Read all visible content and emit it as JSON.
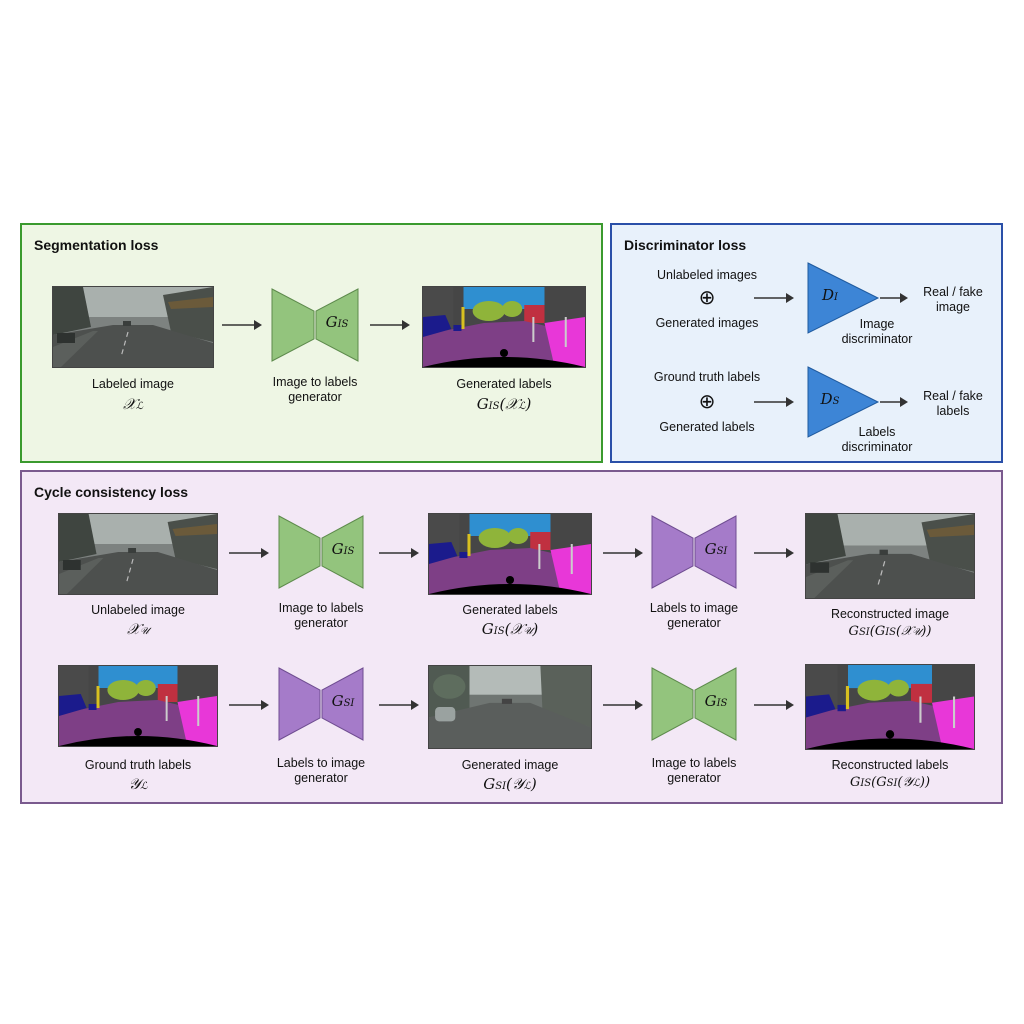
{
  "segmentation": {
    "title": "Segmentation loss",
    "labeled_image": "Labeled image",
    "labeled_math": "𝒳",
    "labeled_sub": "ℒ",
    "gen_line1": "Image to labels",
    "gen_line2": "generator",
    "gen_symbol": "G",
    "gen_sub": "IS",
    "out_label": "Generated labels",
    "out_math": "G",
    "out_math_sub": "IS",
    "out_math_arg": "(𝒳",
    "out_math_arg_sub": "ℒ",
    "out_math_close": ")"
  },
  "discriminator": {
    "title": "Discriminator loss",
    "row1_top": "Unlabeled images",
    "row1_bottom": "Generated images",
    "row1_symbol": "D",
    "row1_sub": "I",
    "row1_name_1": "Image",
    "row1_name_2": "discriminator",
    "row1_out_1": "Real / fake",
    "row1_out_2": "image",
    "row2_top": "Ground truth labels",
    "row2_bottom": "Generated labels",
    "row2_symbol": "D",
    "row2_sub": "S",
    "row2_name_1": "Labels",
    "row2_name_2": "discriminator",
    "row2_out_1": "Real / fake",
    "row2_out_2": "labels",
    "oplus": "⊕"
  },
  "cycle": {
    "title": "Cycle consistency loss",
    "row1": {
      "in_label": "Unlabeled image",
      "in_math": "𝒳",
      "in_sub": "𝒰",
      "g1_line1": "Image to labels",
      "g1_line2": "generator",
      "g1_symbol": "G",
      "g1_sub": "IS",
      "mid_label": "Generated labels",
      "mid_math": "G",
      "mid_sub": "IS",
      "mid_arg": "(𝒳",
      "mid_arg_sub": "𝒰",
      "mid_close": ")",
      "g2_line1": "Labels to image",
      "g2_line2": "generator",
      "g2_symbol": "G",
      "g2_sub": "SI",
      "out_label": "Reconstructed image",
      "out_math": "G",
      "out_sub": "SI",
      "out_arg": "(G",
      "out_arg_sub": "IS",
      "out_arg2": "(𝒳",
      "out_arg2_sub": "𝒰",
      "out_close": "))"
    },
    "row2": {
      "in_label": "Ground truth labels",
      "in_math": "𝒴",
      "in_sub": "ℒ",
      "g1_line1": "Labels to image",
      "g1_line2": "generator",
      "g1_symbol": "G",
      "g1_sub": "SI",
      "mid_label": "Generated image",
      "mid_math": "G",
      "mid_sub": "SI",
      "mid_arg": "(𝒴",
      "mid_arg_sub": "ℒ",
      "mid_close": ")",
      "g2_line1": "Image to labels",
      "g2_line2": "generator",
      "g2_symbol": "G",
      "g2_sub": "IS",
      "out_label": "Reconstructed labels",
      "out_math": "G",
      "out_sub": "IS",
      "out_arg": "(G",
      "out_arg_sub": "SI",
      "out_arg2": "(𝒴",
      "out_arg2_sub": "ℒ",
      "out_close": "))"
    }
  },
  "colors": {
    "seg_bg": "#eef6e4",
    "seg_border": "#3a9a2e",
    "disc_bg": "#e8f1fb",
    "disc_border": "#2a4fa8",
    "cycle_bg": "#f3e8f6",
    "cycle_border": "#7a5a8e",
    "green_gen": "#93c47d",
    "purple_gen": "#a57bc9",
    "blue_disc": "#3d85d6"
  }
}
